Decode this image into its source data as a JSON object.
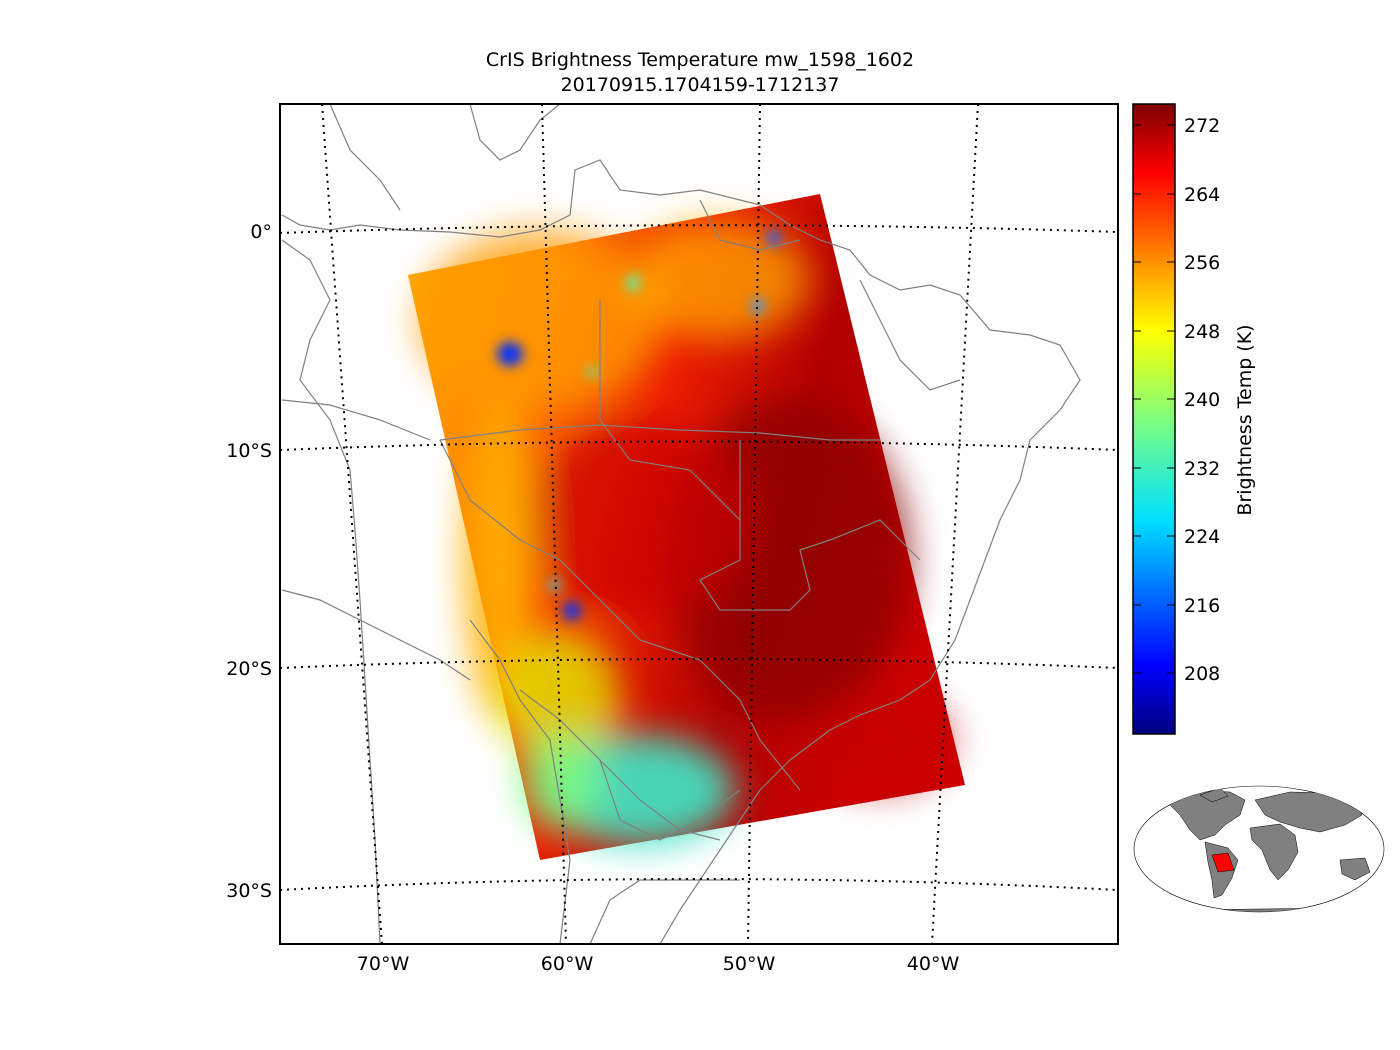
{
  "title": {
    "line1": "CrIS Brightness Temperature mw_1598_1602",
    "line2": "20170915.1704159-1712137"
  },
  "map": {
    "lat_labels": [
      "0°",
      "10°S",
      "20°S",
      "30°S"
    ],
    "lon_labels": [
      "70°W",
      "60°W",
      "50°W",
      "40°W"
    ],
    "coastline_color": "#808080",
    "graticule_style": "dotted"
  },
  "colorbar": {
    "label": "Brightness Temp (K)",
    "colormap": "jet",
    "ticks": [
      "272",
      "264",
      "256",
      "248",
      "240",
      "232",
      "224",
      "216",
      "208"
    ]
  },
  "inset": {
    "land_color": "#808080",
    "highlight_color": "#ff0000"
  }
}
